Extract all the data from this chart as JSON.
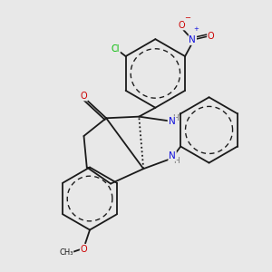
{
  "bg_color": "#e8e8e8",
  "fig_size": [
    3.0,
    3.0
  ],
  "dpi": 100,
  "bond_color": "#1a1a1a",
  "bond_width": 1.3,
  "atom_colors": {
    "C": "#1a1a1a",
    "N": "#1010dd",
    "O": "#cc0000",
    "Cl": "#00bb00",
    "H": "#777777"
  },
  "font_size": 7.0,
  "font_size_small": 6.0
}
